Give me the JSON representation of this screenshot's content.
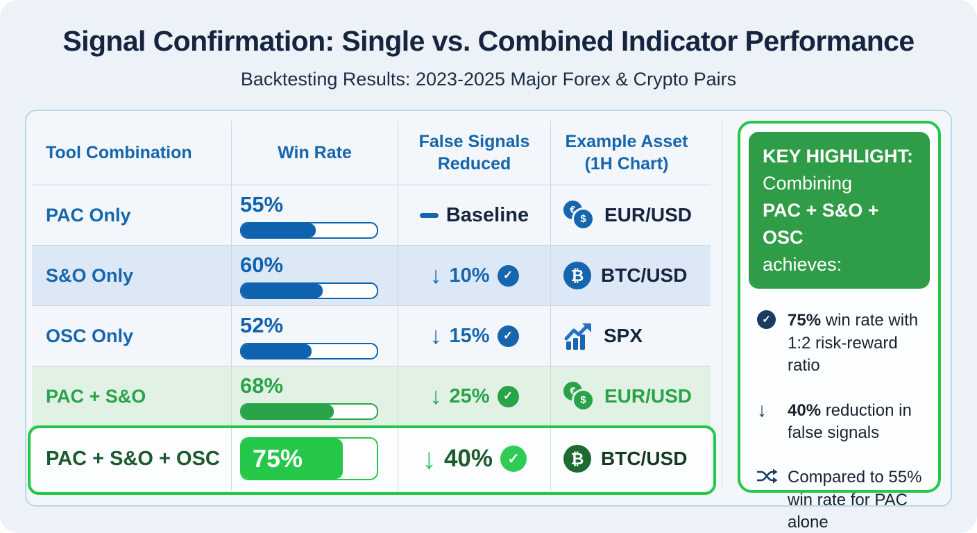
{
  "page": {
    "title": "Signal Confirmation: Single vs. Combined Indicator Performance",
    "subtitle": "Backtesting Results: 2023-2025 Major Forex & Crypto Pairs"
  },
  "icons": {
    "euro": "€",
    "dollar": "$",
    "bitcoin": "₿",
    "check": "✓",
    "down_arrow": "↓"
  },
  "colors": {
    "blue_accent": "#1566ad",
    "navy_text": "#16253f",
    "green_mid": "#28a347",
    "green_bright": "#25c749",
    "green_dark": "#1a5a2e",
    "panel_green": "#2f9c47",
    "row_alt_blue": "#dce8f5",
    "row_green": "#e1f1e4"
  },
  "table": {
    "headers": [
      "Tool Combination",
      "Win Rate",
      "False Signals Reduced",
      "Example Asset (1H Chart)"
    ],
    "rows": [
      {
        "tool": "PAC Only",
        "win_rate": "55%",
        "win_rate_pct": 55,
        "false_signals": "Baseline",
        "asset": "EUR/USD"
      },
      {
        "tool": "S&O Only",
        "win_rate": "60%",
        "win_rate_pct": 60,
        "false_signals": "10%",
        "asset": "BTC/USD"
      },
      {
        "tool": "OSC Only",
        "win_rate": "52%",
        "win_rate_pct": 52,
        "false_signals": "15%",
        "asset": "SPX"
      },
      {
        "tool": "PAC + S&O",
        "win_rate": "68%",
        "win_rate_pct": 68,
        "false_signals": "25%",
        "asset": "EUR/USD"
      },
      {
        "tool": "PAC + S&O + OSC",
        "win_rate": "75%",
        "win_rate_pct": 75,
        "false_signals": "40%",
        "asset": "BTC/USD"
      }
    ]
  },
  "highlight_panel": {
    "head": {
      "line1": "KEY HIGHLIGHT:",
      "line2": "Combining",
      "line3": "PAC + S&O + OSC",
      "line4": "achieves:"
    },
    "bullets": [
      {
        "bold": "75%",
        "text": " win rate with 1:2 risk-reward ratio"
      },
      {
        "bold": "40%",
        "text": " reduction in false signals"
      },
      {
        "bold": "",
        "text": "Compared to 55% win rate for PAC alone"
      }
    ]
  },
  "chart_data": {
    "type": "table",
    "title": "Signal Confirmation: Single vs. Combined Indicator Performance",
    "subtitle": "Backtesting Results: 2023-2025 Major Forex & Crypto Pairs",
    "columns": [
      "Tool Combination",
      "Win Rate",
      "False Signals Reduced",
      "Example Asset (1H Chart)"
    ],
    "rows": [
      [
        "PAC Only",
        "55%",
        "Baseline",
        "EUR/USD"
      ],
      [
        "S&O Only",
        "60%",
        "-10%",
        "BTC/USD"
      ],
      [
        "OSC Only",
        "52%",
        "-15%",
        "SPX"
      ],
      [
        "PAC + S&O",
        "68%",
        "-25%",
        "EUR/USD"
      ],
      [
        "PAC + S&O + OSC",
        "75%",
        "-40%",
        "BTC/USD"
      ]
    ],
    "win_rate_values": [
      55,
      60,
      52,
      68,
      75
    ],
    "false_signal_reduction_values": [
      0,
      10,
      15,
      25,
      40
    ],
    "highlighted_row": "PAC + S&O + OSC",
    "notes": [
      "75% win rate with 1:2 risk-reward ratio",
      "40% reduction in false signals",
      "Compared to 55% win rate for PAC alone"
    ]
  }
}
